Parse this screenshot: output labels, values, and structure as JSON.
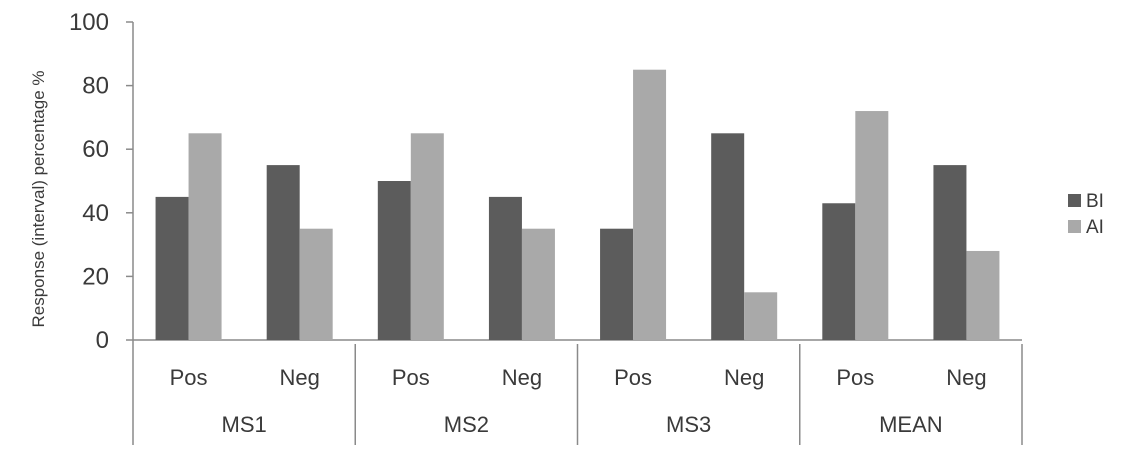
{
  "chart_data": {
    "type": "bar",
    "title": "",
    "xlabel": "",
    "ylabel": "Response (interval) percentage %",
    "ylim": [
      0,
      100
    ],
    "yticks": [
      0,
      20,
      40,
      60,
      80,
      100
    ],
    "grid": false,
    "legend_position": "right",
    "groups": [
      "MS1",
      "MS2",
      "MS3",
      "MEAN"
    ],
    "subcategories": [
      "Pos",
      "Neg"
    ],
    "categories": [
      "Pos",
      "Neg",
      "Pos",
      "Neg",
      "Pos",
      "Neg",
      "Pos",
      "Neg"
    ],
    "series": [
      {
        "name": "BI",
        "color": "#5c5c5c",
        "values": [
          45,
          55,
          50,
          45,
          35,
          65,
          43,
          55
        ]
      },
      {
        "name": "AI",
        "color": "#a9a9a9",
        "values": [
          65,
          35,
          65,
          35,
          85,
          15,
          72,
          28
        ]
      }
    ]
  }
}
